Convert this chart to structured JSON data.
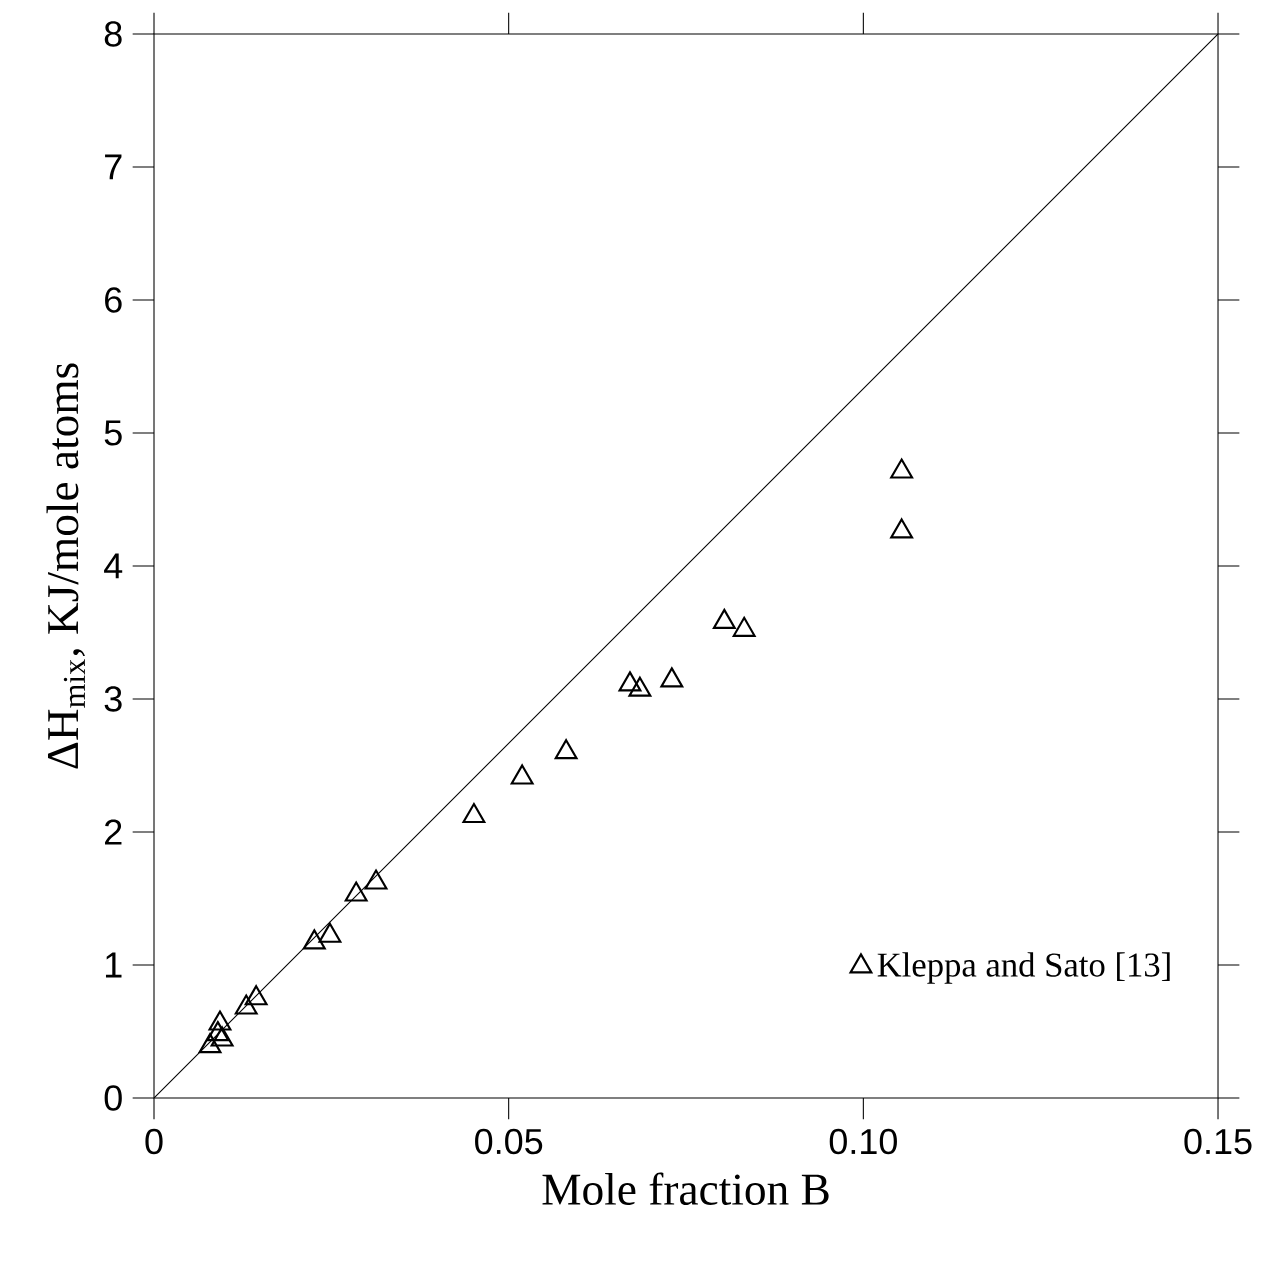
{
  "chart_data": {
    "type": "scatter",
    "xlabel": "Mole fraction B",
    "ylabel": "ΔH$_{mix}$, KJ/mole atoms",
    "xlim": [
      0,
      0.15
    ],
    "ylim": [
      0,
      8
    ],
    "xticks": [
      0,
      0.05,
      {
        "value": 0.1,
        "label": "0.10"
      },
      0.15
    ],
    "yticks": [
      0,
      1,
      2,
      3,
      4,
      5,
      6,
      7,
      8
    ],
    "legend": "bottom right",
    "grid": false,
    "series": [
      {
        "name": "Kleppa and Sato [13]",
        "marker": "triangle",
        "color": "#000000",
        "x": [
          0.0079,
          0.009,
          0.0093,
          0.0096,
          0.013,
          0.0144,
          0.0226,
          0.0248,
          0.0285,
          0.0313,
          0.0451,
          0.0519,
          0.0581,
          0.0671,
          0.0685,
          0.073,
          0.0804,
          0.0832,
          0.1054,
          0.1054
        ],
        "values": [
          0.39,
          0.48,
          0.56,
          0.44,
          0.68,
          0.75,
          1.17,
          1.22,
          1.53,
          1.62,
          2.12,
          2.41,
          2.6,
          3.11,
          3.07,
          3.14,
          3.58,
          3.52,
          4.26,
          4.71
        ]
      },
      {
        "type": "line",
        "marker": "none",
        "color": "#000000",
        "x": [
          0,
          0.15
        ],
        "values": [
          0,
          8
        ]
      }
    ]
  }
}
